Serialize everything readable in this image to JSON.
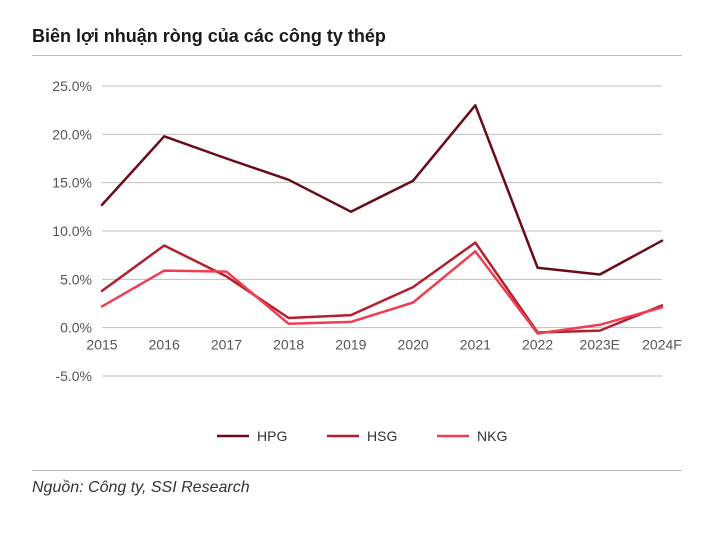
{
  "title": "Biên lợi nhuận ròng của các công ty thép",
  "source": "Nguồn: Công ty, SSI Research",
  "chart": {
    "type": "line",
    "background_color": "#ffffff",
    "grid_color": "#bfbfbf",
    "axis_text_color": "#555555",
    "title_fontsize": 18,
    "label_fontsize": 14,
    "x_categories": [
      "2015",
      "2016",
      "2017",
      "2018",
      "2019",
      "2020",
      "2021",
      "2022",
      "2023E",
      "2024F"
    ],
    "ylim": [
      -5,
      25
    ],
    "ytick_step": 5,
    "ytick_format_suffix": ".0%",
    "series": [
      {
        "name": "HPG",
        "color": "#6a0b1a",
        "line_width": 2.5,
        "marker": "none",
        "values": [
          12.7,
          19.8,
          17.5,
          15.3,
          12.0,
          15.2,
          23.0,
          6.2,
          5.5,
          9.0
        ]
      },
      {
        "name": "HSG",
        "color": "#b21f2d",
        "line_width": 2.5,
        "marker": "none",
        "values": [
          3.8,
          8.5,
          5.3,
          1.0,
          1.3,
          4.2,
          8.8,
          -0.5,
          -0.3,
          2.3
        ]
      },
      {
        "name": "NKG",
        "color": "#ef3e52",
        "line_width": 2.5,
        "marker": "none",
        "values": [
          2.2,
          5.9,
          5.8,
          0.4,
          0.6,
          2.6,
          7.9,
          -0.6,
          0.3,
          2.1
        ]
      }
    ],
    "legend": {
      "position": "bottom-center",
      "marker_style": "line"
    }
  }
}
